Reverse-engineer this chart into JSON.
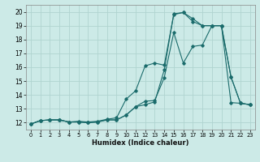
{
  "xlabel": "Humidex (Indice chaleur)",
  "background_color": "#cceae7",
  "grid_color": "#b0d4d0",
  "line_color": "#1a6b6b",
  "xlim": [
    -0.5,
    23.5
  ],
  "ylim": [
    11.5,
    20.5
  ],
  "xticks": [
    0,
    1,
    2,
    3,
    4,
    5,
    6,
    7,
    8,
    9,
    10,
    11,
    12,
    13,
    14,
    15,
    16,
    17,
    18,
    19,
    20,
    21,
    22,
    23
  ],
  "yticks": [
    12,
    13,
    14,
    15,
    16,
    17,
    18,
    19,
    20
  ],
  "curve1_x": [
    0,
    1,
    2,
    3,
    4,
    5,
    6,
    7,
    8,
    9,
    10,
    11,
    12,
    13,
    14,
    15,
    16,
    17,
    18,
    19,
    20,
    21,
    22,
    23
  ],
  "curve1_y": [
    11.9,
    12.15,
    12.2,
    12.2,
    12.05,
    12.05,
    12.0,
    12.05,
    12.2,
    12.2,
    12.55,
    13.15,
    13.55,
    13.6,
    15.25,
    18.5,
    16.3,
    17.5,
    17.6,
    19.0,
    19.0,
    15.3,
    13.4,
    13.3
  ],
  "curve2_x": [
    0,
    1,
    2,
    3,
    4,
    5,
    6,
    7,
    8,
    9,
    10,
    11,
    12,
    13,
    14,
    15,
    16,
    17,
    18,
    19,
    20,
    21,
    22,
    23
  ],
  "curve2_y": [
    11.9,
    12.15,
    12.2,
    12.2,
    12.05,
    12.1,
    12.05,
    12.1,
    12.25,
    12.35,
    13.7,
    14.3,
    16.1,
    16.3,
    16.15,
    19.8,
    19.95,
    19.5,
    19.0,
    19.0,
    19.0,
    15.3,
    13.4,
    13.3
  ],
  "curve3_x": [
    0,
    1,
    2,
    3,
    4,
    5,
    6,
    7,
    8,
    9,
    10,
    11,
    12,
    13,
    14,
    15,
    16,
    17,
    18,
    19,
    20,
    21,
    22,
    23
  ],
  "curve3_y": [
    11.9,
    12.15,
    12.2,
    12.2,
    12.05,
    12.05,
    12.0,
    12.05,
    12.2,
    12.2,
    12.55,
    13.15,
    13.3,
    13.5,
    15.8,
    19.85,
    19.95,
    19.3,
    19.0,
    19.0,
    19.0,
    13.45,
    13.4,
    13.3
  ]
}
